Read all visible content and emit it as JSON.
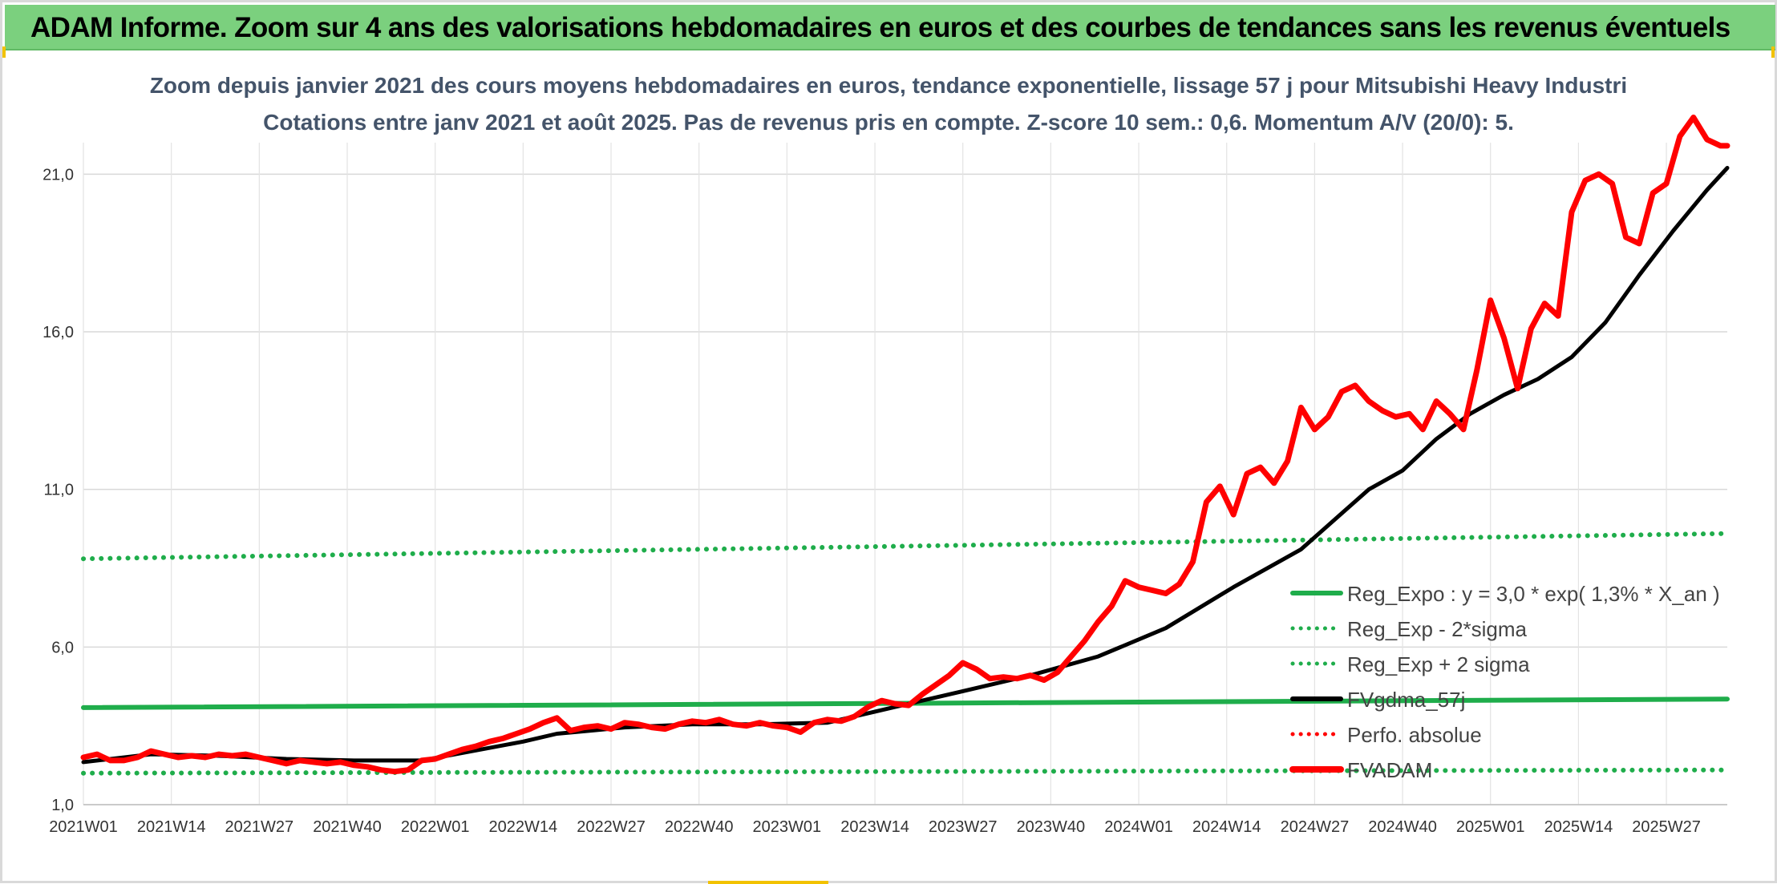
{
  "banner": {
    "title": "ADAM Informe. Zoom sur 4 ans des valorisations hebdomadaires en euros et des courbes de tendances sans les revenus éventuels",
    "color": "#7bd07e"
  },
  "chart_data": {
    "type": "line",
    "title": "Zoom depuis janvier 2021 des cours moyens hebdomadaires en euros, tendance exponentielle, lissage 57 j pour Mitsubishi Heavy Industri",
    "subtitle": "Cotations entre janv 2021 et août 2025. Pas de revenus pris en compte. Z-score 10 sem.: 0,6. Momentum A/V (20/0): 5.",
    "xlabel": "",
    "ylabel": "",
    "ylim": [
      1.0,
      22.0
    ],
    "y_ticks": [
      "1,0",
      "6,0",
      "11,0",
      "16,0",
      "21,0"
    ],
    "y_tick_values": [
      1,
      6,
      11,
      16,
      21
    ],
    "x_ticks": [
      "2021W01",
      "2021W14",
      "2021W27",
      "2021W40",
      "2022W01",
      "2022W14",
      "2022W27",
      "2022W40",
      "2023W01",
      "2023W14",
      "2023W27",
      "2023W40",
      "2024W01",
      "2024W14",
      "2024W27",
      "2024W40",
      "2025W01",
      "2025W14",
      "2025W27"
    ],
    "x_range_weeks": [
      0,
      243
    ],
    "grid": true,
    "legend_position": "right",
    "colors": {
      "green": "#1fad4b",
      "black": "#000000",
      "red": "#ff0000"
    },
    "series": [
      {
        "name": "Reg_Expo : y = 3,0 * exp( 1,3% *  X_an )",
        "style": "solid",
        "color": "#1fad4b",
        "x": [
          0,
          243
        ],
        "y": [
          4.08,
          4.35
        ]
      },
      {
        "name": "Reg_Exp - 2*sigma",
        "style": "dotted",
        "color": "#1fad4b",
        "x": [
          0,
          243
        ],
        "y": [
          2.0,
          2.1
        ]
      },
      {
        "name": "Reg_Exp + 2 sigma",
        "style": "dotted",
        "color": "#1fad4b",
        "x": [
          0,
          243
        ],
        "y": [
          8.8,
          9.6
        ]
      },
      {
        "name": "FVgdma_57j",
        "style": "solid",
        "color": "#000000",
        "x": [
          0,
          10,
          20,
          30,
          40,
          50,
          55,
          60,
          65,
          70,
          75,
          80,
          90,
          100,
          110,
          120,
          130,
          140,
          150,
          160,
          170,
          180,
          190,
          195,
          200,
          205,
          210,
          215,
          220,
          225,
          230,
          235,
          240,
          243
        ],
        "y": [
          2.35,
          2.6,
          2.55,
          2.45,
          2.4,
          2.4,
          2.6,
          2.8,
          3.0,
          3.25,
          3.35,
          3.45,
          3.55,
          3.55,
          3.6,
          4.1,
          4.6,
          5.1,
          5.7,
          6.6,
          7.9,
          9.1,
          11.0,
          11.6,
          12.6,
          13.4,
          14.0,
          14.5,
          15.2,
          16.3,
          17.8,
          19.2,
          20.5,
          21.2
        ]
      },
      {
        "name": "Perfo. absolue",
        "style": "dotted",
        "color": "#ff0000",
        "x": [],
        "y": []
      },
      {
        "name": "FVADAM",
        "style": "solid",
        "color": "#ff0000",
        "x": [
          0,
          2,
          4,
          6,
          8,
          10,
          12,
          14,
          16,
          18,
          20,
          22,
          24,
          26,
          28,
          30,
          32,
          34,
          36,
          38,
          40,
          42,
          44,
          46,
          48,
          50,
          52,
          54,
          56,
          58,
          60,
          62,
          64,
          66,
          68,
          70,
          72,
          74,
          76,
          78,
          80,
          82,
          84,
          86,
          88,
          90,
          92,
          94,
          96,
          98,
          100,
          102,
          104,
          106,
          108,
          110,
          112,
          114,
          116,
          118,
          120,
          122,
          124,
          126,
          128,
          130,
          132,
          134,
          136,
          138,
          140,
          142,
          144,
          146,
          148,
          150,
          152,
          154,
          156,
          158,
          160,
          162,
          164,
          166,
          168,
          170,
          172,
          174,
          176,
          178,
          180,
          182,
          184,
          186,
          188,
          190,
          192,
          194,
          196,
          198,
          200,
          202,
          204,
          206,
          208,
          210,
          212,
          214,
          216,
          218,
          220,
          222,
          224,
          226,
          228,
          230,
          232,
          234,
          236,
          238,
          240,
          242,
          243
        ],
        "y": [
          2.5,
          2.6,
          2.4,
          2.4,
          2.5,
          2.7,
          2.6,
          2.5,
          2.55,
          2.5,
          2.6,
          2.55,
          2.6,
          2.5,
          2.4,
          2.3,
          2.4,
          2.35,
          2.3,
          2.35,
          2.25,
          2.2,
          2.1,
          2.05,
          2.1,
          2.4,
          2.45,
          2.6,
          2.75,
          2.85,
          3.0,
          3.1,
          3.25,
          3.4,
          3.6,
          3.75,
          3.35,
          3.45,
          3.5,
          3.4,
          3.6,
          3.55,
          3.45,
          3.4,
          3.55,
          3.65,
          3.6,
          3.7,
          3.55,
          3.5,
          3.6,
          3.5,
          3.45,
          3.3,
          3.6,
          3.7,
          3.65,
          3.8,
          4.1,
          4.3,
          4.2,
          4.15,
          4.5,
          4.8,
          5.1,
          5.5,
          5.3,
          5.0,
          5.05,
          5.0,
          5.1,
          4.95,
          5.2,
          5.7,
          6.2,
          6.8,
          7.3,
          8.1,
          7.9,
          7.8,
          7.7,
          8.0,
          8.7,
          10.6,
          11.1,
          10.2,
          11.5,
          11.7,
          11.2,
          11.9,
          13.6,
          12.9,
          13.3,
          14.1,
          14.3,
          13.8,
          13.5,
          13.3,
          13.4,
          12.9,
          13.8,
          13.4,
          12.9,
          14.8,
          17.0,
          15.8,
          14.2,
          16.1,
          16.9,
          16.5,
          19.8,
          20.8,
          21.0,
          20.7,
          19.0,
          18.8,
          20.4,
          20.7,
          22.2,
          22.8,
          22.1,
          21.9,
          21.9
        ]
      }
    ]
  }
}
